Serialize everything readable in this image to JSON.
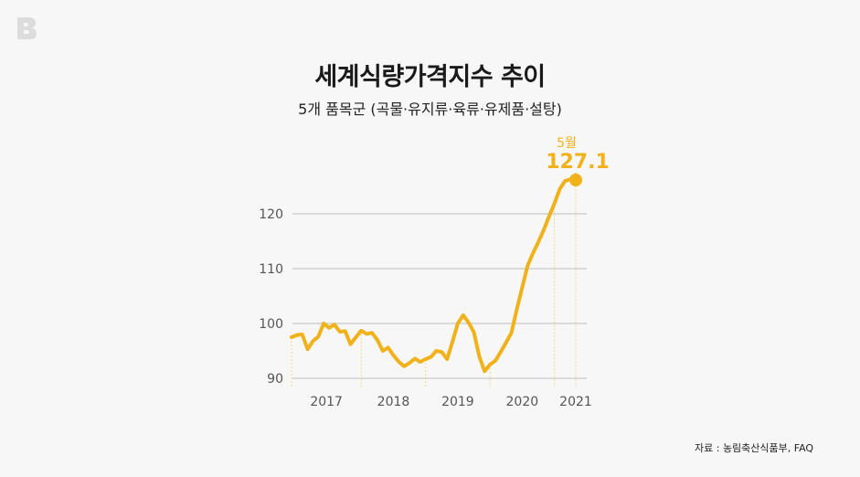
{
  "logo": {
    "letter": "B"
  },
  "title": "세계식량가격지수 추이",
  "subtitle": "5개 품목군 (곡물·유지류·육류·유제품·설탕)",
  "source": "자료 : 농림축산식품부, FAQ",
  "annotation": {
    "month": "5월",
    "value": "127.1"
  },
  "colors": {
    "line": "#f0b11a",
    "grid": "#c8c8c8",
    "background": "#f7f7f7",
    "dashed": "#f5d48a"
  },
  "chart_data": {
    "type": "line",
    "title": "세계식량가격지수 추이",
    "subtitle": "5개 품목군 (곡물·유지류·육류·유제품·설탕)",
    "xlabel": "",
    "ylabel": "",
    "ylim": [
      88,
      128
    ],
    "yticks": [
      90,
      100,
      110,
      120
    ],
    "xticks": [
      "2017",
      "2018",
      "2019",
      "2020",
      "2021"
    ],
    "grid": true,
    "legend": null,
    "annotations": [
      {
        "label": "5월",
        "value": 127.1
      }
    ],
    "series": [
      {
        "name": "세계식량가격지수",
        "x": [
          "2016-12",
          "2017-01",
          "2017-02",
          "2017-03",
          "2017-04",
          "2017-05",
          "2017-06",
          "2017-07",
          "2017-08",
          "2017-09",
          "2017-10",
          "2017-11",
          "2017-12",
          "2018-01",
          "2018-02",
          "2018-03",
          "2018-04",
          "2018-05",
          "2018-06",
          "2018-07",
          "2018-08",
          "2018-09",
          "2018-10",
          "2018-11",
          "2018-12",
          "2019-01",
          "2019-02",
          "2019-03",
          "2019-04",
          "2019-05",
          "2019-06",
          "2019-07",
          "2019-08",
          "2019-09",
          "2019-10",
          "2019-11",
          "2019-12",
          "2020-01",
          "2020-02",
          "2020-03",
          "2020-04",
          "2020-05",
          "2020-06",
          "2020-07",
          "2020-08",
          "2020-09",
          "2020-10",
          "2020-11",
          "2020-12",
          "2021-01",
          "2021-02",
          "2021-03",
          "2021-04",
          "2021-05"
        ],
        "values": [
          97.5,
          97.9,
          98.0,
          95.3,
          96.8,
          97.6,
          100.0,
          99.2,
          99.8,
          98.5,
          98.6,
          96.2,
          97.5,
          98.7,
          98.1,
          98.3,
          97.0,
          95.0,
          95.6,
          94.2,
          93.0,
          92.2,
          92.8,
          93.6,
          93.0,
          93.5,
          93.9,
          95.0,
          94.8,
          93.5,
          96.6,
          100.0,
          101.5,
          100.2,
          98.4,
          94.0,
          91.3,
          92.5,
          93.2,
          94.8,
          96.5,
          98.3,
          102.6,
          106.5,
          110.5,
          112.8,
          114.8,
          117.0,
          119.5,
          121.8,
          124.5,
          126.0,
          126.3,
          127.1
        ]
      }
    ]
  }
}
